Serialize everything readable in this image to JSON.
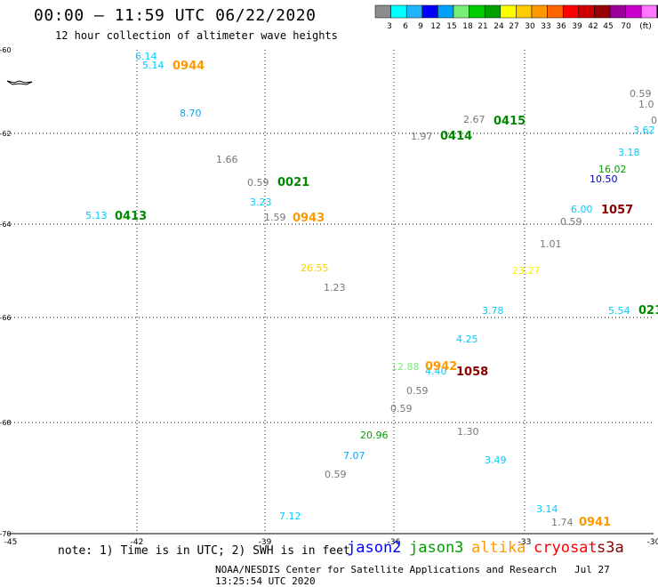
{
  "header": {
    "title": "00:00 – 11:59 UTC 06/22/2020",
    "subtitle": "12 hour collection of altimeter wave heights"
  },
  "legend": {
    "swatch_colors": [
      "#8c8c8c",
      "#00ffff",
      "#1eb4ff",
      "#0000ff",
      "#00a0ff",
      "#77ee77",
      "#00cc00",
      "#00a000",
      "#ffff00",
      "#ffcc00",
      "#ff9900",
      "#ff6600",
      "#ff0000",
      "#cc0000",
      "#990000",
      "#990099",
      "#cc00cc",
      "#ff77ff",
      "#000000"
    ],
    "labels": [
      "3",
      "6",
      "9",
      "12",
      "15",
      "18",
      "21",
      "24",
      "27",
      "30",
      "33",
      "36",
      "39",
      "42",
      "45",
      "70"
    ],
    "unit": "(ft)"
  },
  "map": {
    "lat_ticks": [
      "-60",
      "-62",
      "-64",
      "-66",
      "-68",
      "-70"
    ],
    "lon_ticks": [
      "-45",
      "-42",
      "-39",
      "-36",
      "-33",
      "-30"
    ],
    "land_name": "island",
    "heights": [
      {
        "text": "6.14",
        "color": "#00ccff"
      },
      {
        "text": "5.14",
        "color": "#00ccff"
      },
      {
        "text": "8.70",
        "color": "#00aaff"
      },
      {
        "text": "1.66",
        "color": "#777777"
      },
      {
        "text": "0.59",
        "color": "#777777"
      },
      {
        "text": "3.23",
        "color": "#00ccff"
      },
      {
        "text": "1.59",
        "color": "#777777"
      },
      {
        "text": "5.13",
        "color": "#00ccff"
      },
      {
        "text": "26.55",
        "color": "#ffcc00"
      },
      {
        "text": "1.23",
        "color": "#777777"
      },
      {
        "text": "2.67",
        "color": "#777777"
      },
      {
        "text": "1.97",
        "color": "#777777"
      },
      {
        "text": "0.59",
        "color": "#777777"
      },
      {
        "text": "1.0",
        "color": "#777777"
      },
      {
        "text": "0",
        "color": "#777777"
      },
      {
        "text": "3.62",
        "color": "#00ccff"
      },
      {
        "text": "3.18",
        "color": "#00ccff"
      },
      {
        "text": "16.02",
        "color": "#00a000"
      },
      {
        "text": "10.50",
        "color": "#0000cc"
      },
      {
        "text": "6.00",
        "color": "#00ccff"
      },
      {
        "text": "0.59",
        "color": "#777777"
      },
      {
        "text": "1.01",
        "color": "#777777"
      },
      {
        "text": "23.27",
        "color": "#ffee00"
      },
      {
        "text": "3.78",
        "color": "#00ccff"
      },
      {
        "text": "5.54",
        "color": "#00ccff"
      },
      {
        "text": "4.25",
        "color": "#00ccff"
      },
      {
        "text": "12.88",
        "color": "#77ee77"
      },
      {
        "text": "4.40",
        "color": "#00ccff"
      },
      {
        "text": "0.59",
        "color": "#777777"
      },
      {
        "text": "0.59",
        "color": "#777777"
      },
      {
        "text": "1.30",
        "color": "#777777"
      },
      {
        "text": "20.96",
        "color": "#00a000"
      },
      {
        "text": "7.07",
        "color": "#00aaff"
      },
      {
        "text": "3.49",
        "color": "#00ccff"
      },
      {
        "text": "0.59",
        "color": "#777777"
      },
      {
        "text": "7.12",
        "color": "#00ccff"
      },
      {
        "text": "3.14",
        "color": "#00ccff"
      },
      {
        "text": "1.74",
        "color": "#777777"
      }
    ],
    "times": [
      {
        "text": "0944",
        "color": "#ff9900"
      },
      {
        "text": "0021",
        "color": "#008800"
      },
      {
        "text": "0943",
        "color": "#ff9900"
      },
      {
        "text": "0413",
        "color": "#008800"
      },
      {
        "text": "0415",
        "color": "#008800"
      },
      {
        "text": "0414",
        "color": "#008800"
      },
      {
        "text": "1057",
        "color": "#880000"
      },
      {
        "text": "021",
        "color": "#008800"
      },
      {
        "text": "0942",
        "color": "#ff9900"
      },
      {
        "text": "1058",
        "color": "#880000"
      },
      {
        "text": "0941",
        "color": "#ff9900"
      }
    ]
  },
  "footer": {
    "note": "note: 1) Time is in UTC; 2) SWH is in feet",
    "satellites": [
      {
        "name": "jason2",
        "color": "#0000ff"
      },
      {
        "name": "jason3",
        "color": "#00a000"
      },
      {
        "name": "altika",
        "color": "#ff9900"
      },
      {
        "name": "cryosat",
        "color": "#ff0000"
      },
      {
        "name": "s3a",
        "color": "#880000"
      }
    ],
    "credit": "NOAA/NESDIS Center for Satellite Applications and Research",
    "generated": "Jul 27 13:25:54 UTC 2020"
  }
}
